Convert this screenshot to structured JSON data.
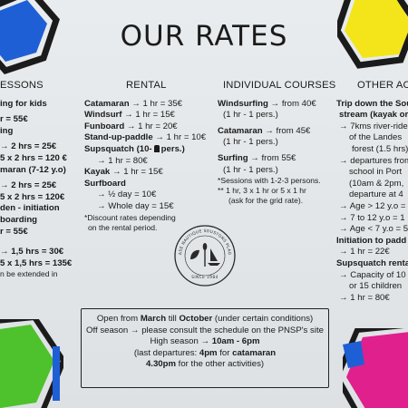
{
  "title": "OUR RATES",
  "columns": {
    "lessons": {
      "heading": "ESSONS",
      "lines": [
        "ing for kids",
        "r = 55€",
        "ing",
        "→ 2 hrs = 25€",
        "5 x 2 hrs = 120 €",
        "maran (7-12 y.o)",
        "→ 2 hrs = 25€",
        "5 x 2 hrs = 120€",
        "den - initiation",
        "boarding",
        "r = 55€",
        "→ 1,5 hrs = 30€",
        "5 x 1,5 hrs = 135€",
        "n be extended in"
      ]
    },
    "rental": {
      "heading": "RENTAL",
      "items": [
        {
          "name": "Catamaran",
          "price": "1 hr = 35€"
        },
        {
          "name": "Windsurf",
          "price": "1 hr = 15€"
        },
        {
          "name": "Funboard",
          "price": "1 hr = 20€"
        },
        {
          "name": "Stand-up-paddle",
          "price": "1 hr = 10€"
        }
      ],
      "supsquatch_name": "Supsquatch (10-",
      "supsquatch_pers": "pers.)",
      "supsquatch_price": "1 hr = 80€",
      "kayak_name": "Kayak",
      "kayak_price": "1 hr = 15€",
      "surfboard_name": "Surfboard",
      "surfboard_half": "½ day = 10€",
      "surfboard_whole": "Whole day = 15€",
      "note1": "*Discount rates depending",
      "note2": "on the rental period."
    },
    "individual": {
      "heading": "INDIVIDUAL COURSES",
      "windsurf_name": "Windsurfing",
      "windsurf_price": "from 40€",
      "windsurf_sub": "(1 hr - 1 pers.)",
      "cat_name": "Catamaran",
      "cat_price": "from 45€",
      "cat_sub": "(1 hr - 1 pers.)",
      "surf_name": "Surfing",
      "surf_price": "from 55€",
      "surf_sub": "(1 hr - 1 pers.)",
      "note1": "*Sessions with 1-2-3 persons.",
      "note2": "** 1 hr, 3 x 1 hr or 5 x 1 hr",
      "note3": "(ask for the grid rate)."
    },
    "other": {
      "heading": "OTHER ACTIV",
      "lines": [
        "Trip down the Sou",
        "stream (kayak or",
        "→ 7kms river-ride",
        "of the Landes",
        "forest (1.5 hrs)",
        "→ departures from",
        "school in Port",
        "(10am & 2pm,",
        "departure at 4",
        "→ Age > 12 y.o =",
        "→ 7 to 12 y.o = 1",
        "→ Age < 7 y.o = 5",
        "Initiation to padd",
        "→ 1 hr = 22€",
        "Supsquatch renta",
        "→ Capacity of 10",
        "or 15 children",
        "→ 1 hr = 80€"
      ]
    }
  },
  "info": {
    "l1_a": "Open from ",
    "l1_b": "March",
    "l1_c": " till ",
    "l1_d": "October",
    "l1_e": " (under certain conditions)",
    "l2": "Off season → please consult the schedule on the PNSP's site",
    "l3_a": "High season → ",
    "l3_b": "10am - 6pm",
    "l4_a": "(last departures: ",
    "l4_b": "4pm",
    "l4_c": " for ",
    "l4_d": "catamaran",
    "l5_a": "4.30pm",
    "l5_b": " for the other activities)"
  },
  "stamp": {
    "arc_text": "BASE NAUTIQUE SOUSTONS PLAGE",
    "since": "SINCE 1984"
  },
  "colors": {
    "blue": "#1f5fd6",
    "yellow": "#f4e51a",
    "green": "#4ec22c",
    "magenta": "#e0208d",
    "dark": "#1b1b1b"
  }
}
